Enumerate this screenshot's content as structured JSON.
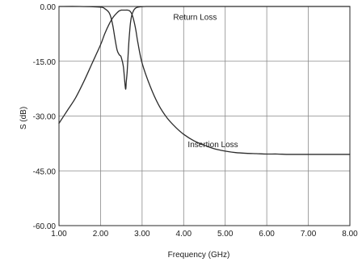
{
  "chart_data": {
    "type": "line",
    "title": "",
    "xlabel": "Frequency (GHz)",
    "ylabel": "S (dB)",
    "xlim": [
      1.0,
      8.0
    ],
    "ylim": [
      -60.0,
      0.0
    ],
    "grid": true,
    "x_ticks": [
      "1.00",
      "2.00",
      "3.00",
      "4.00",
      "5.00",
      "6.00",
      "7.00",
      "8.00"
    ],
    "y_ticks": [
      "0.00",
      "-15.00",
      "-30.00",
      "-45.00",
      "-60.00"
    ],
    "annotations": [
      {
        "text": "Return Loss",
        "x": 3.75,
        "y": -2.8
      },
      {
        "text": "Insertion Loss",
        "x": 4.1,
        "y": -37.6
      }
    ],
    "series": [
      {
        "x": [
          1.0,
          1.2,
          1.4,
          1.6,
          1.8,
          2.0,
          2.1,
          2.2,
          2.3,
          2.4,
          2.45,
          2.5,
          2.52,
          2.55,
          2.6,
          2.65,
          2.7,
          2.75,
          2.8,
          2.85,
          2.9,
          3.0,
          3.2,
          3.4,
          3.6,
          3.8,
          4.0,
          4.25,
          4.5,
          4.75,
          5.0,
          5.25,
          5.5,
          5.75,
          6.0,
          6.25,
          6.5,
          6.75,
          7.0,
          7.25,
          7.5,
          7.75,
          8.0
        ],
        "values": [
          -32.0,
          -28.5,
          -25.0,
          -20.5,
          -15.5,
          -10.5,
          -7.5,
          -5.0,
          -3.0,
          -1.7,
          -1.2,
          -1.0,
          -1.0,
          -1.0,
          -1.0,
          -1.0,
          -1.2,
          -2.0,
          -3.8,
          -6.5,
          -10.0,
          -15.5,
          -22.0,
          -27.0,
          -30.5,
          -33.0,
          -35.0,
          -36.8,
          -38.0,
          -39.0,
          -39.6,
          -40.0,
          -40.2,
          -40.3,
          -40.4,
          -40.4,
          -40.5,
          -40.5,
          -40.5,
          -40.5,
          -40.5,
          -40.5,
          -40.5
        ]
      },
      {
        "x": [
          1.0,
          1.5,
          2.0,
          2.1,
          2.2,
          2.25,
          2.3,
          2.35,
          2.4,
          2.45,
          2.48,
          2.5,
          2.55,
          2.6,
          2.62,
          2.64,
          2.66,
          2.68,
          2.7,
          2.72,
          2.75,
          2.8,
          2.85,
          2.9,
          3.0,
          3.1,
          3.2,
          3.5,
          4.0,
          5.0,
          6.0,
          7.0,
          8.0
        ],
        "values": [
          0.0,
          0.0,
          -0.2,
          -0.6,
          -1.6,
          -3.0,
          -5.5,
          -9.0,
          -12.0,
          -13.2,
          -13.5,
          -14.0,
          -16.5,
          -22.5,
          -20.5,
          -18.0,
          -14.0,
          -10.0,
          -7.0,
          -4.5,
          -2.5,
          -1.0,
          -0.4,
          -0.2,
          -0.05,
          0.0,
          0.0,
          0.0,
          0.0,
          0.0,
          0.0,
          0.0,
          0.0
        ]
      }
    ]
  }
}
